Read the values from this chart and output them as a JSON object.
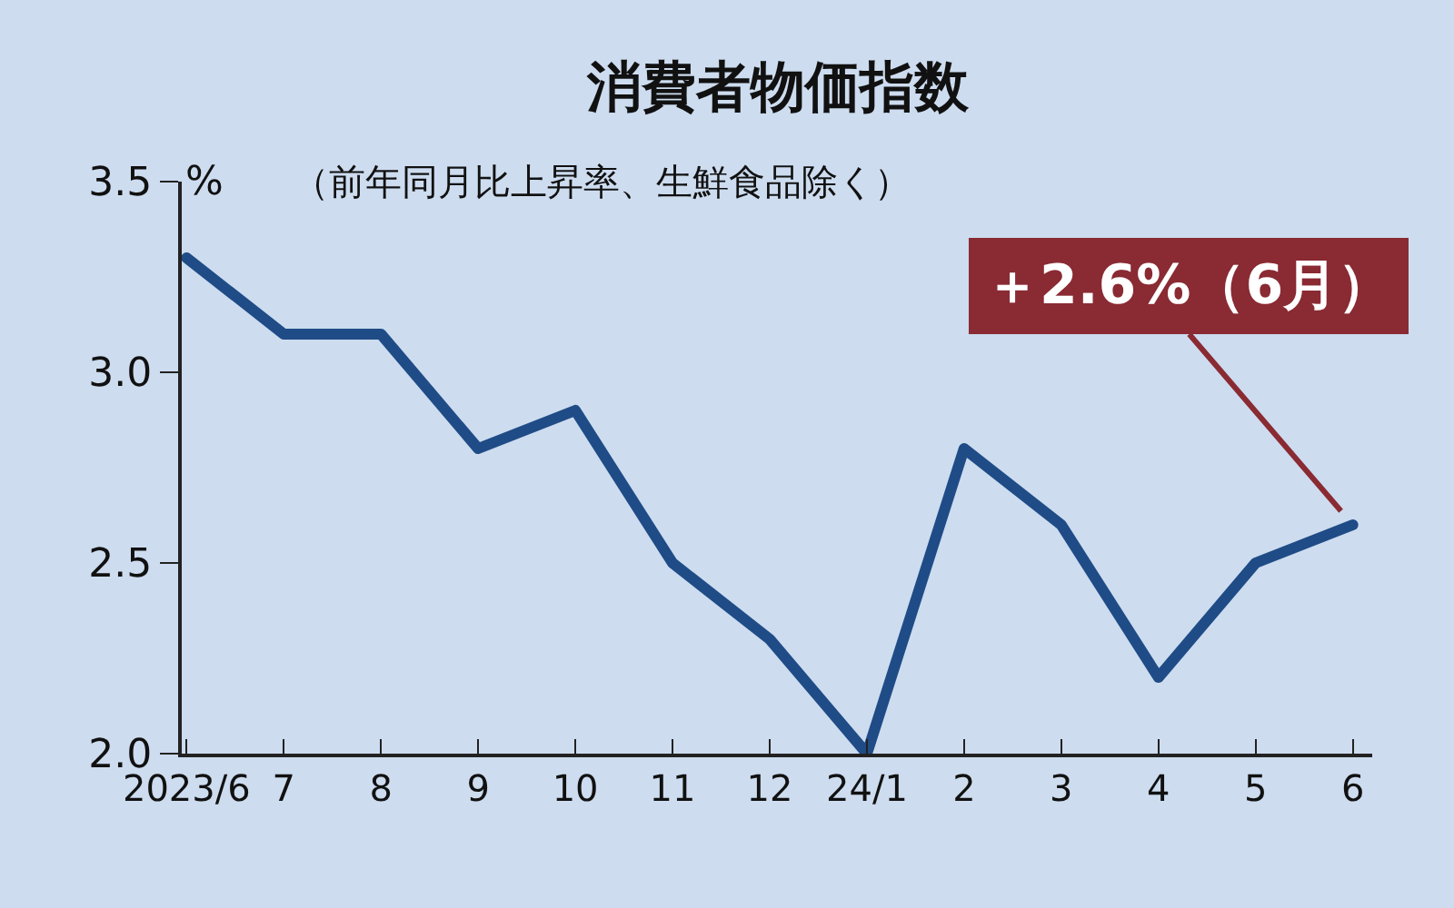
{
  "chart_data": {
    "type": "line",
    "title": "消費者物価指数",
    "subtitle": "（前年同月比上昇率、生鮮食品除く）",
    "ylabel": "%",
    "categories": [
      "2023/6",
      "7",
      "8",
      "9",
      "10",
      "11",
      "12",
      "24/1",
      "2",
      "3",
      "4",
      "5",
      "6"
    ],
    "series": [
      {
        "color": "#1f4c86",
        "values": [
          3.3,
          3.1,
          3.1,
          2.8,
          2.9,
          2.5,
          2.3,
          2.0,
          2.8,
          2.6,
          2.2,
          2.5,
          2.6
        ]
      }
    ],
    "ylim": [
      2.0,
      3.5
    ],
    "yticks": [
      {
        "value": 2.0,
        "label": "2.0"
      },
      {
        "value": 2.5,
        "label": "2.5"
      },
      {
        "value": 3.0,
        "label": "3.0"
      },
      {
        "value": 3.5,
        "label": "3.5"
      }
    ],
    "grid": false,
    "legend": false,
    "marker": "none",
    "line_style": "solid",
    "annotations": [
      {
        "text": "＋2.6%（6月）",
        "x": "6",
        "y": 2.6
      }
    ]
  }
}
